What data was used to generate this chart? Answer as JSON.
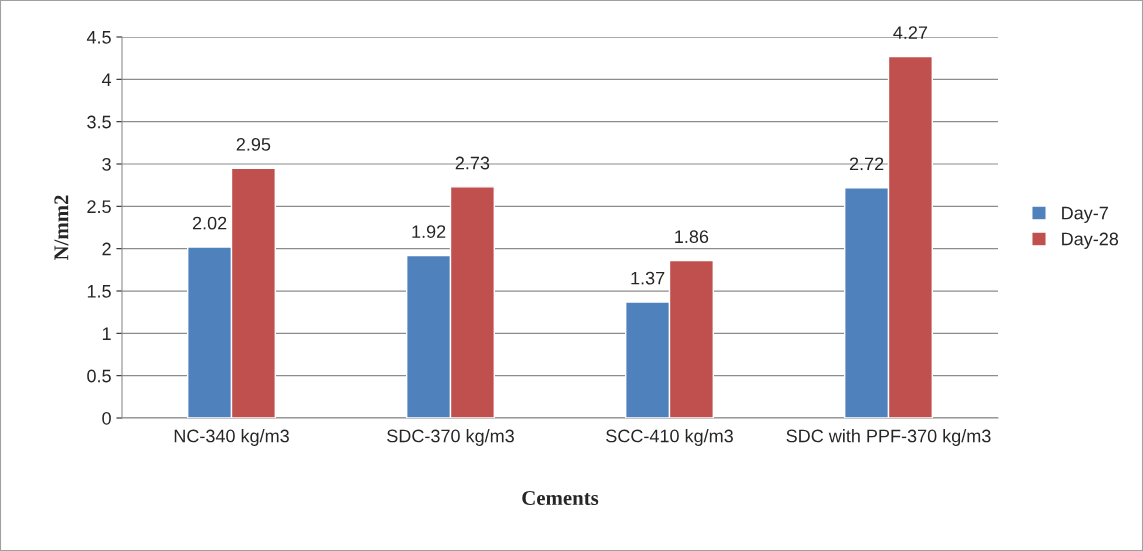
{
  "chart_data": {
    "type": "bar",
    "xlabel": "Cements",
    "ylabel": "N/mm2",
    "categories": [
      "NC-340 kg/m3",
      "SDC-370 kg/m3",
      "SCC-410 kg/m3",
      "SDC with PPF-370 kg/m3"
    ],
    "series": [
      {
        "name": "Day-7",
        "color": "#4f81bd",
        "values": [
          2.02,
          1.92,
          1.37,
          2.72
        ]
      },
      {
        "name": "Day-28",
        "color": "#c0504d",
        "values": [
          2.95,
          2.73,
          1.86,
          4.27
        ]
      }
    ],
    "ylim": [
      0,
      4.5
    ],
    "yticks": [
      0,
      0.5,
      1,
      1.5,
      2,
      2.5,
      3,
      3.5,
      4,
      4.5
    ],
    "grid": "y",
    "legend": "right",
    "data_labels": true
  }
}
